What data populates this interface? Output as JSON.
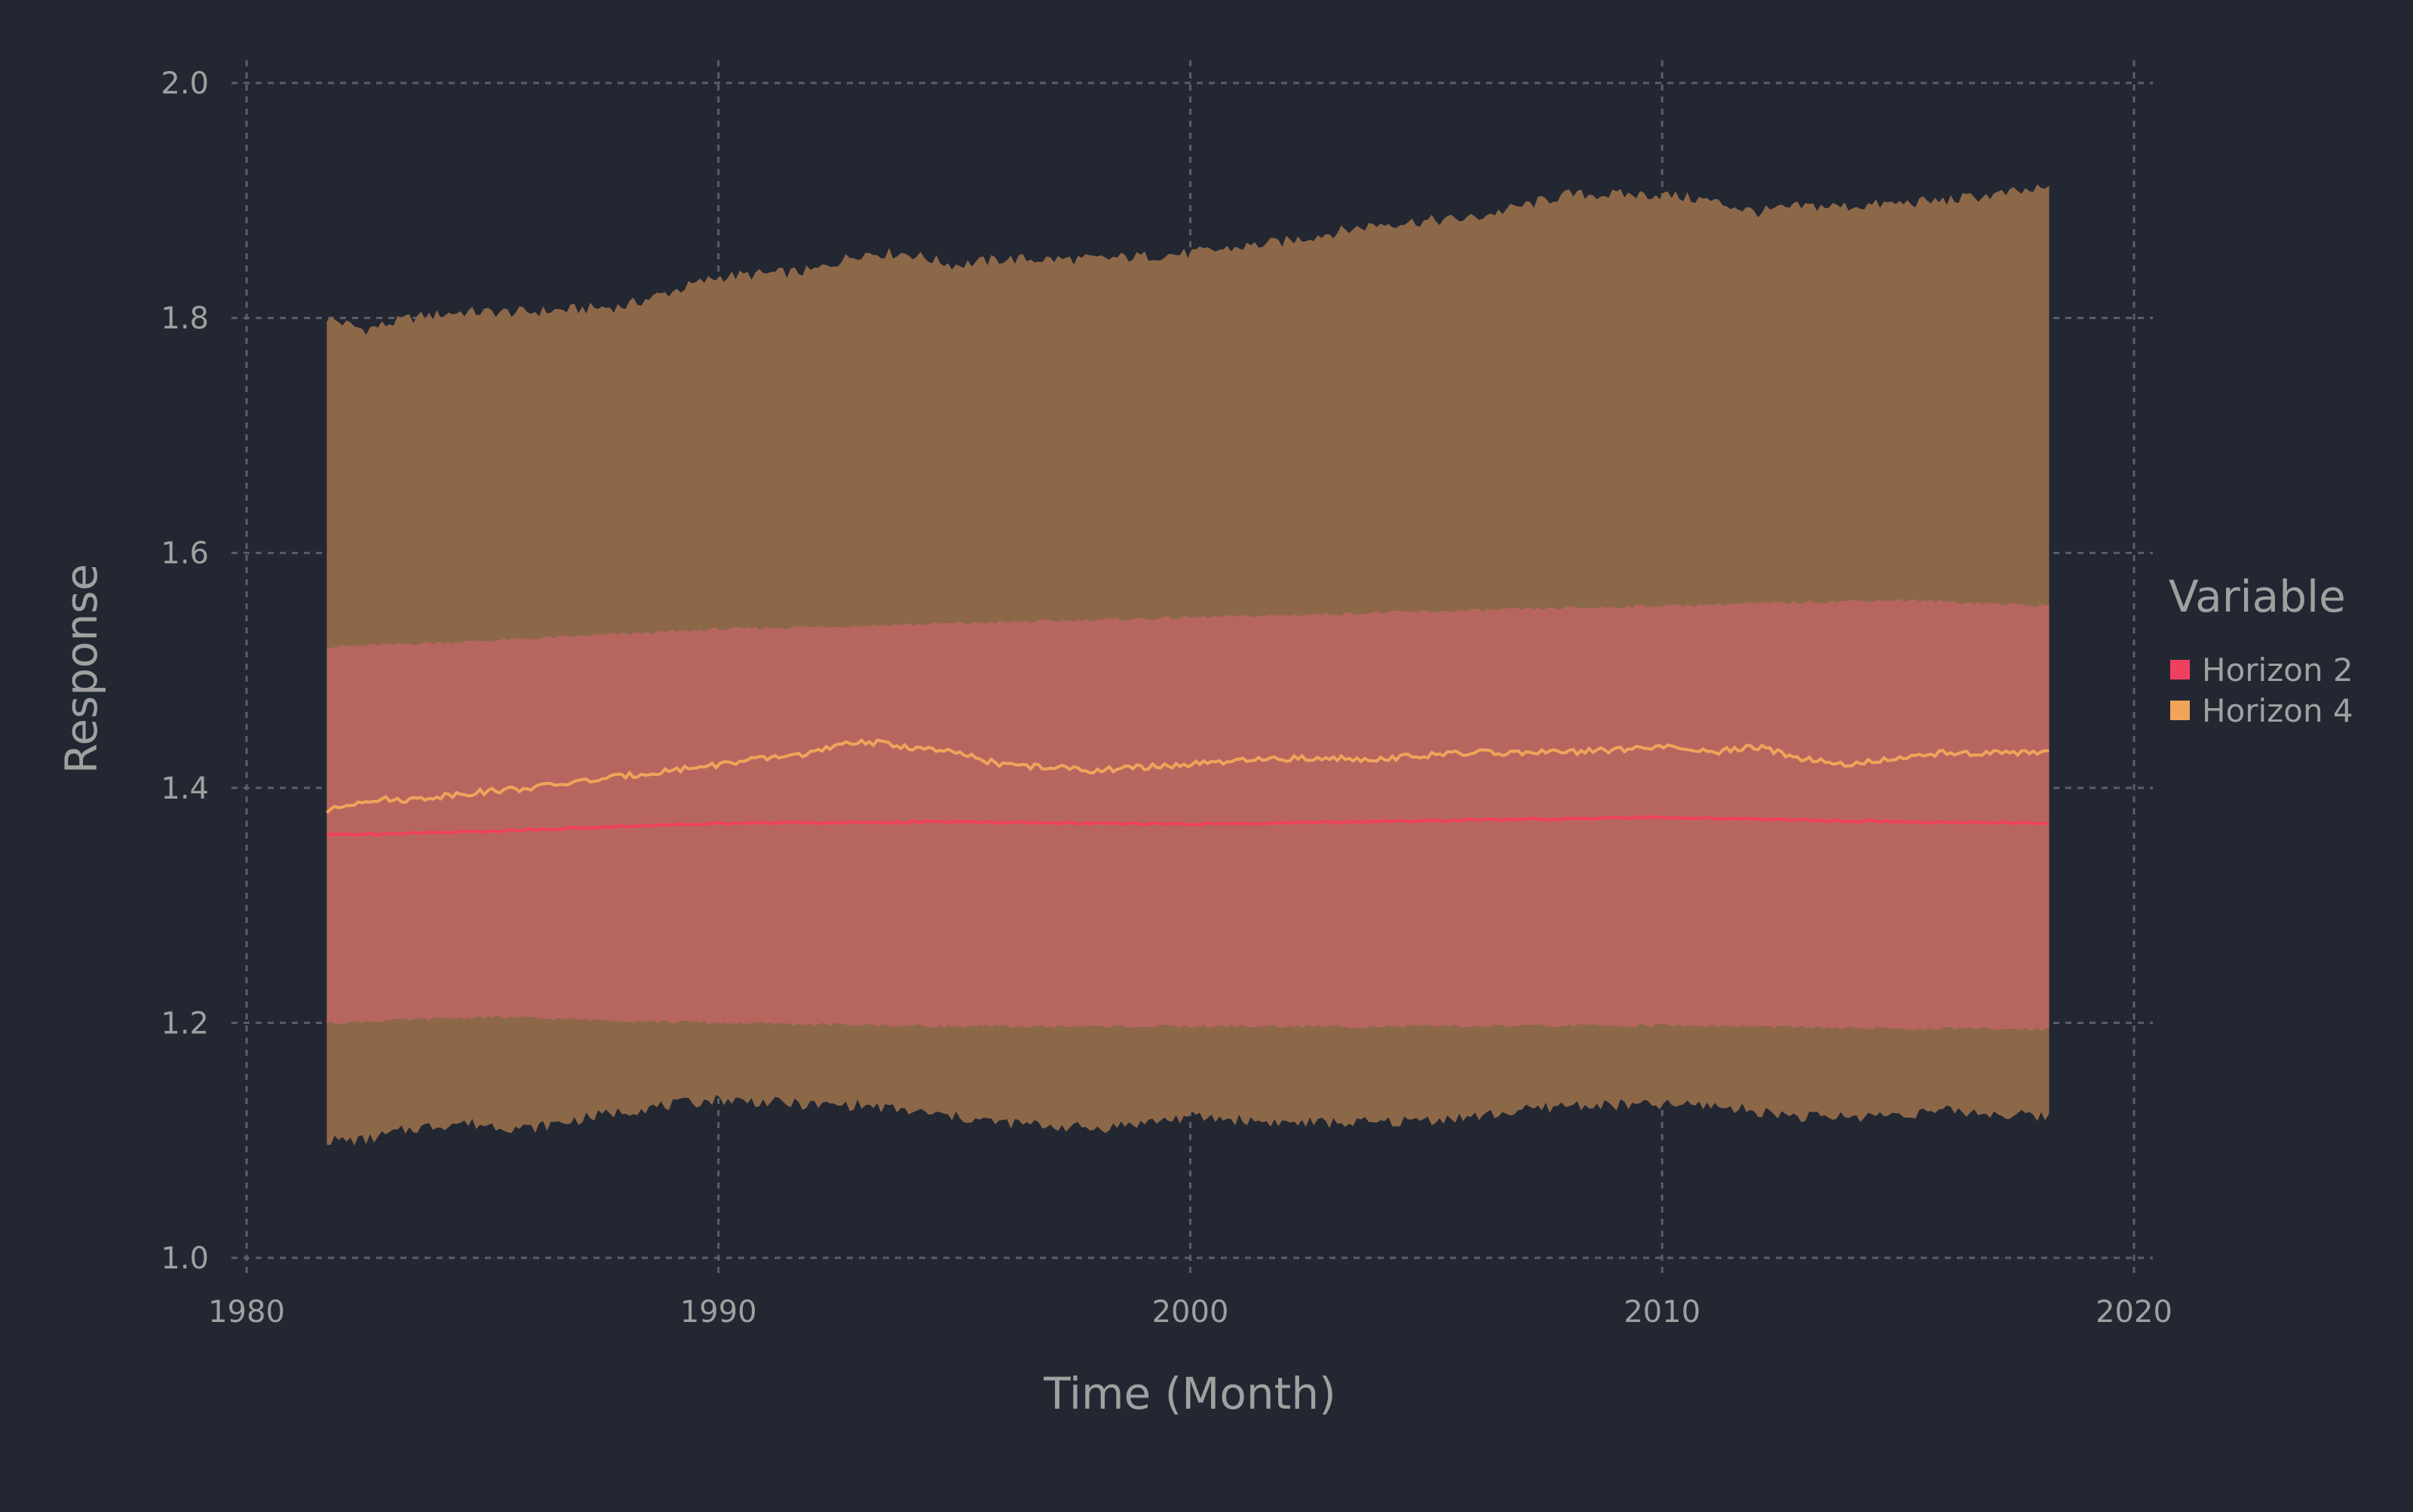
{
  "chart_data": {
    "type": "area",
    "xlabel": "Time (Month)",
    "ylabel": "Response",
    "xlim": [
      1980,
      2020
    ],
    "ylim": [
      1.0,
      2.0
    ],
    "x_ticks": [
      1980,
      1990,
      2000,
      2010,
      2020
    ],
    "y_ticks": [
      "1.0",
      "1.2",
      "1.4",
      "1.6",
      "1.8",
      "2.0"
    ],
    "grid": true,
    "legend": {
      "title": "Variable",
      "placement": "right"
    },
    "colors": {
      "background": "#222732",
      "grid": "#5a5f6a",
      "text": "#a0a0a0"
    },
    "series": [
      {
        "name": "Horizon 4",
        "color": "#F0A45A",
        "band_color": "#8C6849",
        "line_color": "#F0A45A",
        "x": [
          1981.7,
          1982.5,
          1983.5,
          1984.5,
          1986,
          1988,
          1990,
          1992,
          1993,
          1994,
          1995,
          1996,
          1998,
          2000,
          2002,
          2004,
          2006,
          2008,
          2010,
          2011,
          2012,
          2013,
          2014,
          2016,
          2018.2
        ],
        "mean": [
          1.38,
          1.39,
          1.39,
          1.395,
          1.4,
          1.41,
          1.42,
          1.43,
          1.44,
          1.435,
          1.43,
          1.42,
          1.415,
          1.42,
          1.425,
          1.425,
          1.43,
          1.43,
          1.435,
          1.43,
          1.435,
          1.425,
          1.42,
          1.43,
          1.43
        ],
        "upper": [
          1.8,
          1.79,
          1.8,
          1.805,
          1.805,
          1.81,
          1.835,
          1.84,
          1.855,
          1.855,
          1.845,
          1.85,
          1.85,
          1.855,
          1.865,
          1.88,
          1.885,
          1.905,
          1.905,
          1.9,
          1.89,
          1.895,
          1.895,
          1.9,
          1.91
        ],
        "lower": [
          1.1,
          1.1,
          1.11,
          1.115,
          1.11,
          1.125,
          1.135,
          1.13,
          1.13,
          1.125,
          1.12,
          1.115,
          1.11,
          1.12,
          1.115,
          1.115,
          1.12,
          1.13,
          1.13,
          1.13,
          1.125,
          1.12,
          1.12,
          1.125,
          1.12
        ]
      },
      {
        "name": "Horizon 2",
        "color": "#F0405F",
        "band_color": "#B7665F",
        "line_color": "#F0405F",
        "x": [
          1981.7,
          1985,
          1990,
          1995,
          2000,
          2005,
          2010,
          2015,
          2018.2
        ],
        "mean": [
          1.36,
          1.363,
          1.37,
          1.371,
          1.369,
          1.372,
          1.375,
          1.371,
          1.37
        ],
        "upper": [
          1.52,
          1.525,
          1.535,
          1.54,
          1.545,
          1.55,
          1.555,
          1.56,
          1.555
        ],
        "lower": [
          1.2,
          1.205,
          1.2,
          1.197,
          1.197,
          1.197,
          1.198,
          1.195,
          1.195
        ]
      }
    ]
  }
}
